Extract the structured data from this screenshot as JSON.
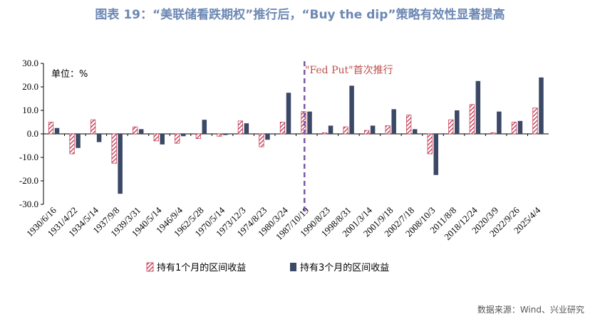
{
  "title": "图表 19：“美联储看跌期权”推行后，“Buy the dip”策略有效性显著提高",
  "source": "数据来源：Wind、兴业研究",
  "unit_label": "单位：%",
  "annotation": "\"Fed Put\"首次推行",
  "colors": {
    "series1_stripe": "#c0334d",
    "series2": "#3b4866",
    "dashed_line": "#7b58a6"
  },
  "chart_data": {
    "type": "bar",
    "ylim": [
      -30,
      30
    ],
    "yticks": [
      30.0,
      20.0,
      10.0,
      0.0,
      -10.0,
      -20.0,
      -30.0
    ],
    "ytick_labels": [
      "30.0",
      "20.0",
      "10.0",
      "0.0",
      "-10.0",
      "-20.0",
      "-30.0"
    ],
    "categories": [
      "1930/6/16",
      "1931/4/22",
      "1934/5/14",
      "1937/9/8",
      "1939/3/31",
      "1940/5/14",
      "1946/9/4",
      "1962/5/28",
      "1970/5/14",
      "1973/12/3",
      "1974/8/23",
      "1980/3/24",
      "1987/10/19",
      "1990/8/23",
      "1998/8/31",
      "2001/3/14",
      "2001/9/18",
      "2002/7/18",
      "2008/10/3",
      "2011/8/8",
      "2018/12/24",
      "2020/3/9",
      "2022/9/26",
      "2025/4/4"
    ],
    "series": [
      {
        "name": "持有1个月的区间收益",
        "values": [
          5.0,
          -8.5,
          6.0,
          -12.5,
          3.0,
          -3.0,
          -4.0,
          -2.0,
          -1.0,
          5.5,
          -5.5,
          5.0,
          9.5,
          0.5,
          3.0,
          1.5,
          3.5,
          8.0,
          -8.5,
          6.0,
          12.5,
          0.5,
          5.0,
          11.0
        ]
      },
      {
        "name": "持有3个月的区间收益",
        "values": [
          2.5,
          -6.0,
          -3.5,
          -25.5,
          2.0,
          -4.5,
          -1.0,
          6.0,
          -0.5,
          4.5,
          -2.5,
          17.5,
          9.5,
          3.5,
          20.5,
          3.5,
          10.5,
          2.0,
          -17.5,
          10.0,
          22.5,
          9.5,
          5.5,
          24.0
        ]
      }
    ],
    "annotation_after_category": "1987/10/19"
  }
}
